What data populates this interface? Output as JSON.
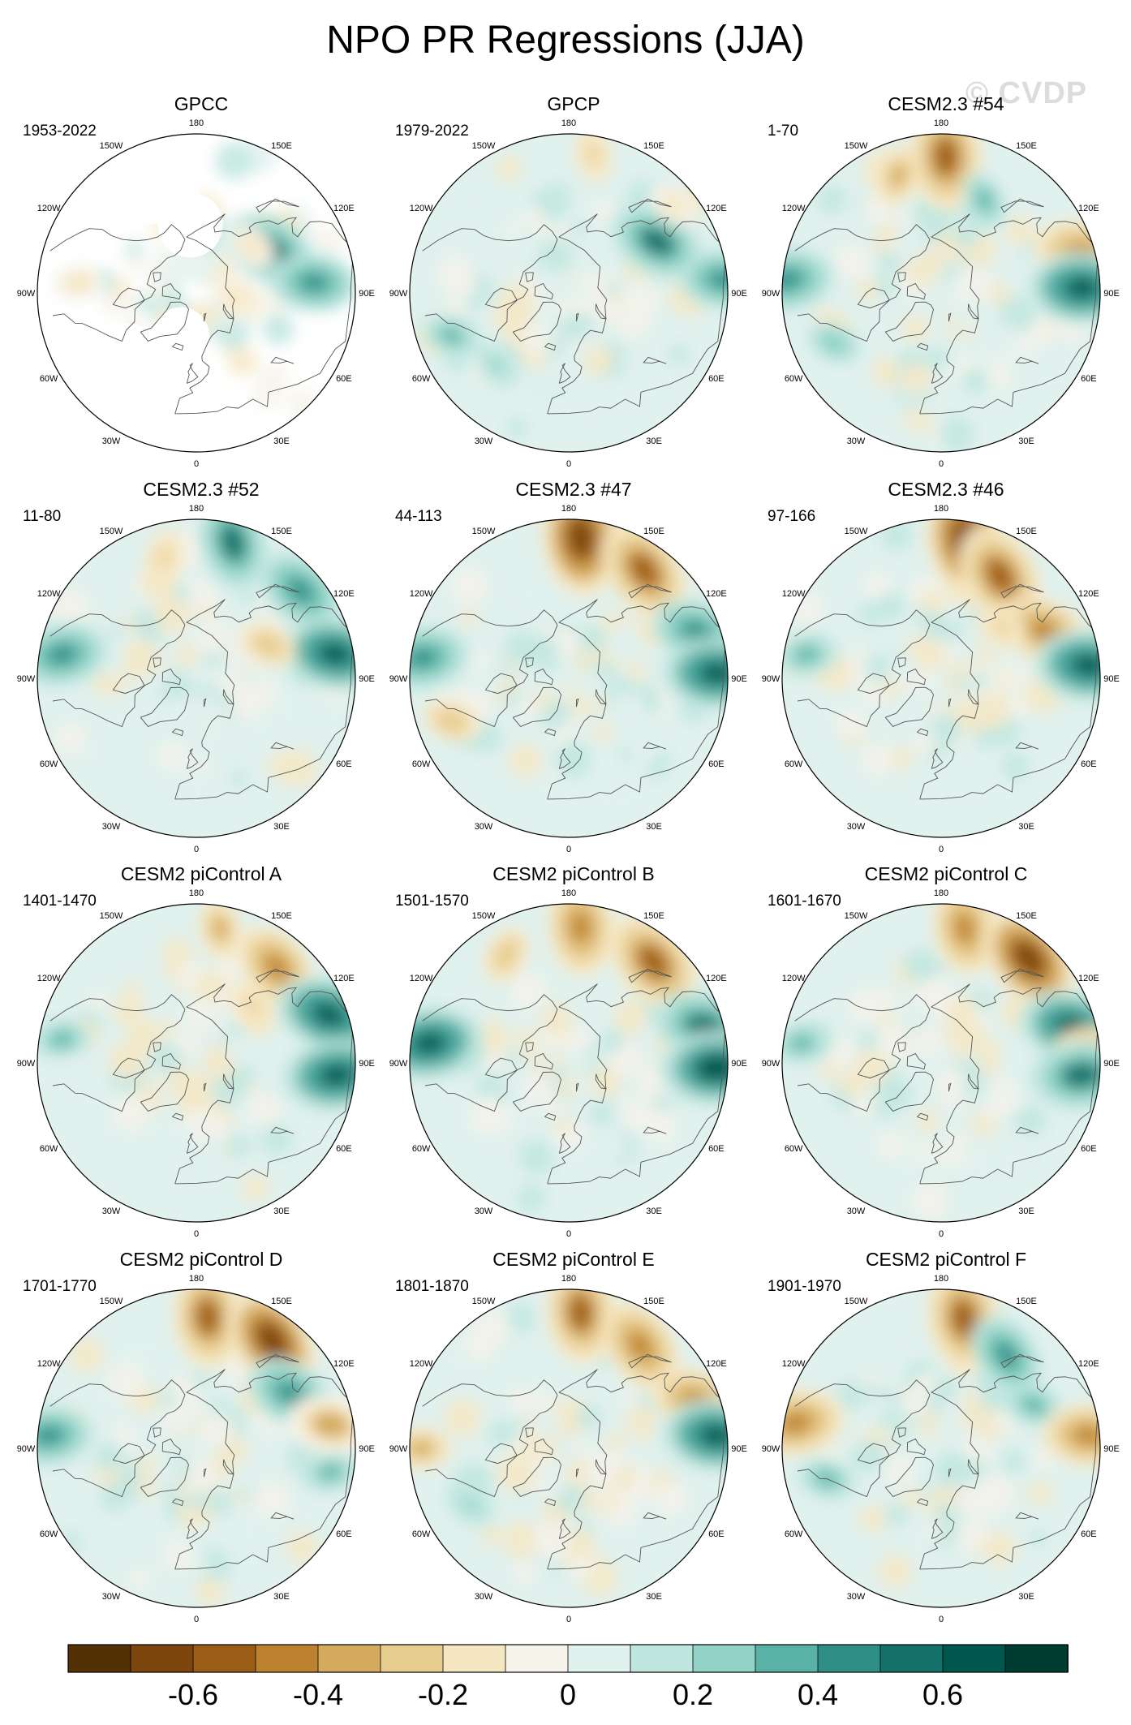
{
  "title": "NPO PR Regressions (JJA)",
  "watermark": "© CVDP",
  "chart_data": {
    "type": "heatmap",
    "projection": "north polar stereographic",
    "variable": "PR",
    "season": "JJA",
    "longitude_labels": [
      "180",
      "150E",
      "120E",
      "90E",
      "60E",
      "30E",
      "0",
      "30W",
      "60W",
      "90W",
      "120W",
      "150W"
    ],
    "colorbar": {
      "levels": [
        -0.7,
        -0.6,
        -0.5,
        -0.4,
        -0.3,
        -0.2,
        -0.1,
        0,
        0.1,
        0.2,
        0.3,
        0.4,
        0.5,
        0.6,
        0.7
      ],
      "tick_labels": [
        "-0.6",
        "-0.4",
        "-0.2",
        "0",
        "0.2",
        "0.4",
        "0.6"
      ],
      "tick_values": [
        -0.6,
        -0.4,
        -0.2,
        0,
        0.2,
        0.4,
        0.6
      ],
      "colors": [
        "#543005",
        "#7c460d",
        "#9c5d17",
        "#bd822f",
        "#d5aa5c",
        "#e8cd91",
        "#f6e7c3",
        "#f5f3ea",
        "#e1f1ee",
        "#bfe6df",
        "#91d3c7",
        "#5ab2a7",
        "#2f8f86",
        "#137169",
        "#01564d",
        "#003c30"
      ]
    },
    "panels": [
      {
        "name": "GPCC",
        "period": "1953-2022",
        "land_only": true,
        "anomalies": [
          {
            "lon": 120,
            "lat": 52,
            "value": 0.5
          },
          {
            "lon": 95,
            "lat": 38,
            "value": 0.4
          },
          {
            "lon": -95,
            "lat": 38,
            "value": -0.2
          },
          {
            "lon": 130,
            "lat": 58,
            "value": -0.2
          }
        ]
      },
      {
        "name": "GPCP",
        "period": "1979-2022",
        "anomalies": [
          {
            "lon": 170,
            "lat": 28,
            "value": -0.25
          },
          {
            "lon": 120,
            "lat": 45,
            "value": 0.5
          },
          {
            "lon": 95,
            "lat": 22,
            "value": 0.4
          },
          {
            "lon": 130,
            "lat": 30,
            "value": -0.2
          },
          {
            "lon": -70,
            "lat": 35,
            "value": 0.3
          },
          {
            "lon": -45,
            "lat": 45,
            "value": 0.2
          }
        ]
      },
      {
        "name": "CESM2.3 #54",
        "period": "1-70",
        "anomalies": [
          {
            "lon": 178,
            "lat": 30,
            "value": -0.6
          },
          {
            "lon": -160,
            "lat": 35,
            "value": -0.35
          },
          {
            "lon": 155,
            "lat": 45,
            "value": 0.3
          },
          {
            "lon": 105,
            "lat": 25,
            "value": -0.5
          },
          {
            "lon": 92,
            "lat": 28,
            "value": 0.6
          },
          {
            "lon": -95,
            "lat": 22,
            "value": 0.45
          },
          {
            "lon": -65,
            "lat": 38,
            "value": 0.25
          }
        ]
      },
      {
        "name": "CESM2.3 #52",
        "period": "11-80",
        "anomalies": [
          {
            "lon": 165,
            "lat": 28,
            "value": 0.5
          },
          {
            "lon": 130,
            "lat": 30,
            "value": 0.45
          },
          {
            "lon": 100,
            "lat": 28,
            "value": 0.6
          },
          {
            "lon": 115,
            "lat": 55,
            "value": -0.3
          },
          {
            "lon": -100,
            "lat": 30,
            "value": 0.45
          },
          {
            "lon": -165,
            "lat": 35,
            "value": -0.25
          }
        ]
      },
      {
        "name": "CESM2.3 #47",
        "period": "44-113",
        "anomalies": [
          {
            "lon": 175,
            "lat": 28,
            "value": -0.7
          },
          {
            "lon": 145,
            "lat": 32,
            "value": -0.6
          },
          {
            "lon": 110,
            "lat": 30,
            "value": 0.45
          },
          {
            "lon": 92,
            "lat": 25,
            "value": 0.6
          },
          {
            "lon": -98,
            "lat": 25,
            "value": 0.45
          },
          {
            "lon": -70,
            "lat": 35,
            "value": -0.3
          }
        ]
      },
      {
        "name": "CESM2.3 #46",
        "period": "97-166",
        "anomalies": [
          {
            "lon": 170,
            "lat": 28,
            "value": -0.7
          },
          {
            "lon": 150,
            "lat": 38,
            "value": -0.6
          },
          {
            "lon": 115,
            "lat": 40,
            "value": -0.45
          },
          {
            "lon": 95,
            "lat": 25,
            "value": 0.6
          },
          {
            "lon": -100,
            "lat": 30,
            "value": 0.35
          },
          {
            "lon": 130,
            "lat": 55,
            "value": -0.25
          }
        ]
      },
      {
        "name": "CESM2 piControl A",
        "period": "1401-1470",
        "anomalies": [
          {
            "lon": 170,
            "lat": 30,
            "value": -0.35
          },
          {
            "lon": 140,
            "lat": 35,
            "value": -0.45
          },
          {
            "lon": 110,
            "lat": 28,
            "value": 0.6
          },
          {
            "lon": 85,
            "lat": 28,
            "value": 0.6
          },
          {
            "lon": -100,
            "lat": 30,
            "value": 0.3
          },
          {
            "lon": 135,
            "lat": 55,
            "value": -0.25
          }
        ]
      },
      {
        "name": "CESM2 piControl B",
        "period": "1501-1570",
        "anomalies": [
          {
            "lon": 175,
            "lat": 30,
            "value": -0.5
          },
          {
            "lon": 140,
            "lat": 32,
            "value": -0.6
          },
          {
            "lon": 105,
            "lat": 28,
            "value": 0.55
          },
          {
            "lon": 88,
            "lat": 25,
            "value": 0.65
          },
          {
            "lon": -98,
            "lat": 28,
            "value": 0.6
          },
          {
            "lon": -150,
            "lat": 35,
            "value": -0.3
          }
        ]
      },
      {
        "name": "CESM2 piControl C",
        "period": "1601-1670",
        "anomalies": [
          {
            "lon": 170,
            "lat": 30,
            "value": -0.45
          },
          {
            "lon": 140,
            "lat": 30,
            "value": -0.65
          },
          {
            "lon": 105,
            "lat": 30,
            "value": 0.6
          },
          {
            "lon": 92,
            "lat": 22,
            "value": -0.45
          },
          {
            "lon": 85,
            "lat": 28,
            "value": 0.55
          },
          {
            "lon": -98,
            "lat": 28,
            "value": 0.3
          }
        ]
      },
      {
        "name": "CESM2 piControl D",
        "period": "1701-1770",
        "anomalies": [
          {
            "lon": 175,
            "lat": 32,
            "value": -0.55
          },
          {
            "lon": 145,
            "lat": 32,
            "value": -0.65
          },
          {
            "lon": 120,
            "lat": 42,
            "value": 0.45
          },
          {
            "lon": 100,
            "lat": 30,
            "value": -0.4
          },
          {
            "lon": 80,
            "lat": 30,
            "value": 0.3
          },
          {
            "lon": -95,
            "lat": 25,
            "value": 0.4
          }
        ]
      },
      {
        "name": "CESM2 piControl E",
        "period": "1801-1870",
        "anomalies": [
          {
            "lon": 175,
            "lat": 30,
            "value": -0.55
          },
          {
            "lon": 145,
            "lat": 35,
            "value": -0.5
          },
          {
            "lon": 110,
            "lat": 30,
            "value": -0.45
          },
          {
            "lon": 95,
            "lat": 25,
            "value": 0.6
          },
          {
            "lon": -90,
            "lat": 25,
            "value": -0.35
          },
          {
            "lon": -60,
            "lat": 40,
            "value": 0.2
          }
        ]
      },
      {
        "name": "CESM2 piControl F",
        "period": "1901-1970",
        "anomalies": [
          {
            "lon": 170,
            "lat": 32,
            "value": -0.6
          },
          {
            "lon": 145,
            "lat": 40,
            "value": 0.4
          },
          {
            "lon": 115,
            "lat": 45,
            "value": 0.35
          },
          {
            "lon": 95,
            "lat": 25,
            "value": -0.45
          },
          {
            "lon": -100,
            "lat": 25,
            "value": -0.5
          },
          {
            "lon": -75,
            "lat": 38,
            "value": 0.3
          }
        ]
      }
    ]
  }
}
